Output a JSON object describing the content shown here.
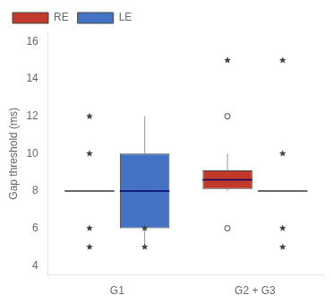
{
  "chart_data": {
    "type": "box",
    "ylabel": "Gap threshold (ms)",
    "categories": [
      "G1",
      "G2 + G3"
    ],
    "ylim": [
      3.5,
      16.5
    ],
    "yticks": [
      4,
      6,
      8,
      10,
      12,
      14,
      16
    ],
    "grid": false,
    "legend": "upper left",
    "series": [
      {
        "name": "RE",
        "color": "#C0392B",
        "boxes": [
          {
            "median": 8.0,
            "extremes": [
              12.0,
              10.0,
              6.0,
              5.0
            ]
          },
          {
            "q1": 8.1,
            "median": 8.6,
            "q3": 9.1,
            "whisker_low": 8.0,
            "whisker_high": 10.0,
            "outliers": [
              12.0,
              6.0
            ],
            "extremes": [
              15.0
            ]
          }
        ]
      },
      {
        "name": "LE",
        "color": "#4472C4",
        "boxes": [
          {
            "q1": 6.0,
            "median": 8.0,
            "q3": 10.0,
            "whisker_low": 5.0,
            "whisker_high": 12.0,
            "extremes": [
              5.0,
              6.0
            ]
          },
          {
            "median": 8.0,
            "extremes": [
              15.0,
              10.0,
              6.0,
              5.0
            ]
          }
        ]
      }
    ]
  }
}
